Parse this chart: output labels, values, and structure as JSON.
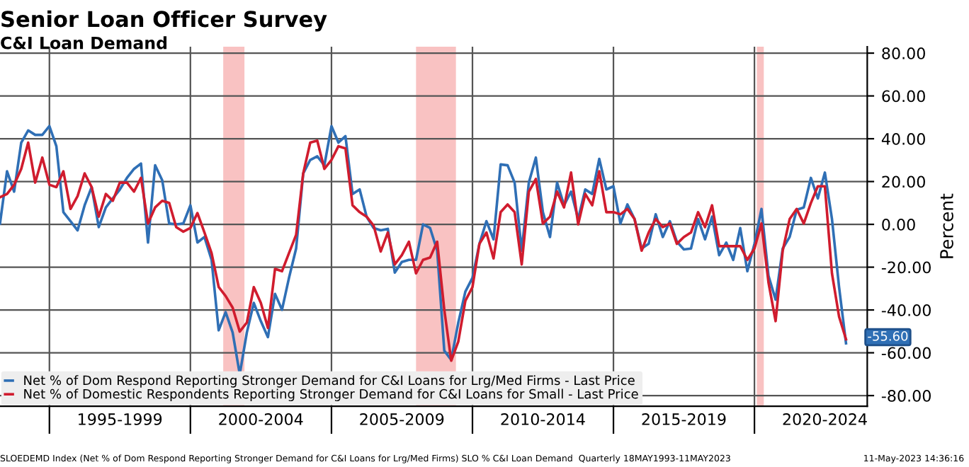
{
  "chart_data": {
    "type": "line",
    "title": "Senior Loan Officer Survey",
    "subtitle": "C&I Loan Demand",
    "ylabel": "Percent",
    "x": [
      "1993-04",
      "1993-07",
      "1993-10",
      "1994-01",
      "1994-04",
      "1994-07",
      "1994-10",
      "1995-01",
      "1995-04",
      "1995-07",
      "1995-10",
      "1996-01",
      "1996-04",
      "1996-07",
      "1996-10",
      "1997-01",
      "1997-04",
      "1997-07",
      "1997-10",
      "1998-01",
      "1998-04",
      "1998-07",
      "1998-10",
      "1999-01",
      "1999-04",
      "1999-07",
      "1999-10",
      "2000-01",
      "2000-04",
      "2000-07",
      "2000-10",
      "2001-01",
      "2001-04",
      "2001-07",
      "2001-10",
      "2002-01",
      "2002-04",
      "2002-07",
      "2002-10",
      "2003-01",
      "2003-04",
      "2003-07",
      "2003-10",
      "2004-01",
      "2004-04",
      "2004-07",
      "2004-10",
      "2005-01",
      "2005-04",
      "2005-07",
      "2005-10",
      "2006-01",
      "2006-04",
      "2006-07",
      "2006-10",
      "2007-01",
      "2007-04",
      "2007-07",
      "2007-10",
      "2008-01",
      "2008-04",
      "2008-07",
      "2008-10",
      "2009-01",
      "2009-04",
      "2009-07",
      "2009-10",
      "2010-01",
      "2010-04",
      "2010-07",
      "2010-10",
      "2011-01",
      "2011-04",
      "2011-07",
      "2011-10",
      "2012-01",
      "2012-04",
      "2012-07",
      "2012-10",
      "2013-01",
      "2013-04",
      "2013-07",
      "2013-10",
      "2014-01",
      "2014-04",
      "2014-07",
      "2014-10",
      "2015-01",
      "2015-04",
      "2015-07",
      "2015-10",
      "2016-01",
      "2016-04",
      "2016-07",
      "2016-10",
      "2017-01",
      "2017-04",
      "2017-07",
      "2017-10",
      "2018-01",
      "2018-04",
      "2018-07",
      "2018-10",
      "2019-01",
      "2019-04",
      "2019-07",
      "2019-10",
      "2020-01",
      "2020-04",
      "2020-07",
      "2020-10",
      "2021-01",
      "2021-04",
      "2021-07",
      "2021-10",
      "2022-01",
      "2022-04",
      "2022-07",
      "2022-10",
      "2023-01",
      "2023-04"
    ],
    "series": [
      {
        "name": "Net % of Dom Respond Reporting Stronger Demand for C&I Loans for Lrg/Med Firms - Last Price",
        "color": "#2f6fb5",
        "values": [
          0.4,
          24.8,
          15.3,
          38.2,
          43.9,
          41.8,
          41.8,
          45.9,
          36.5,
          5.7,
          1.5,
          -2.8,
          8.9,
          17.4,
          -1.3,
          7.9,
          12.1,
          16.3,
          21.7,
          25.9,
          28.4,
          -8.5,
          27.6,
          20.6,
          0.4,
          0,
          0.4,
          8.9,
          -8.5,
          -5.9,
          -16.6,
          -49.5,
          -41,
          -50.5,
          -70,
          -50.5,
          -36.7,
          -45.2,
          -52.7,
          -32.5,
          -39.9,
          -25,
          -11.3,
          23.8,
          30.1,
          31.8,
          27.6,
          45.9,
          38.2,
          41.2,
          14.2,
          16.3,
          3.6,
          -1.7,
          -2.8,
          -2.1,
          -22.5,
          -17.6,
          -16.6,
          -16.6,
          0,
          -1.7,
          -12.3,
          -59,
          -63.3,
          -46,
          -31.4,
          -25,
          -9.1,
          1.5,
          -7,
          28,
          27.6,
          19.5,
          -12.3,
          19.5,
          31.2,
          5.7,
          -5.9,
          19.5,
          8.9,
          15.3,
          2.5,
          16.3,
          14.2,
          30.6,
          16.3,
          17.8,
          0.4,
          9.3,
          2.5,
          -11.3,
          -9.1,
          4.7,
          -5.9,
          1.5,
          -8.1,
          -11.7,
          -11.3,
          2.5,
          -7,
          3.6,
          -14.4,
          -8.5,
          -16.6,
          -1.7,
          -21.9,
          -9.1,
          7.2,
          -24,
          -35.2,
          -11.3,
          -5.9,
          6.8,
          7.9,
          21.7,
          12.1,
          24.2,
          2.5,
          -29.3,
          -55.6
        ]
      },
      {
        "name": "Net % of Domestic Respondents Reporting Stronger Demand for C&I Loans for Small - Last Price",
        "color": "#d01c2e",
        "values": [
          12.7,
          14.2,
          18.5,
          25.9,
          38.2,
          19.5,
          31.2,
          18.5,
          17.4,
          24.8,
          7.2,
          13.2,
          23.8,
          17.4,
          3.6,
          14.2,
          11,
          19.5,
          19.5,
          15.3,
          21.7,
          0.4,
          7.9,
          11,
          10,
          -1.3,
          -3.4,
          -1.7,
          5.3,
          -3.8,
          -13.4,
          -29.3,
          -33.5,
          -38.9,
          -50.1,
          -45.9,
          -29.3,
          -36.7,
          -48.4,
          -20.8,
          -21.9,
          -13.4,
          -4.9,
          23.8,
          38.2,
          39.1,
          25.9,
          30.1,
          36.5,
          35.5,
          8.9,
          5.7,
          3.6,
          -0.6,
          -12.7,
          -3.8,
          -18.7,
          -14.4,
          -8.1,
          -22.9,
          -16.6,
          -15.5,
          -8.1,
          -39.9,
          -63.7,
          -54.8,
          -35.7,
          -29.3,
          -9.1,
          -3.8,
          -15.9,
          5.7,
          9.3,
          5.7,
          -18.7,
          15.3,
          21.2,
          0.4,
          3.6,
          15.3,
          7.9,
          24.2,
          0,
          14.2,
          8.9,
          24.8,
          5.7,
          5.7,
          4.7,
          7.2,
          2.5,
          -12.3,
          -3.8,
          2.5,
          -1.3,
          0.4,
          -9.1,
          -5.9,
          -3.8,
          5.7,
          -1.3,
          8.9,
          -10.2,
          -10.2,
          -10.2,
          -10.2,
          -16.6,
          -11.3,
          0.4,
          -27.2,
          -45.2,
          -12.3,
          2.5,
          7.2,
          0.4,
          10,
          17.8,
          17.8,
          -22.9,
          -43.1,
          -53.7
        ]
      }
    ],
    "xlim": [
      "1993-04",
      "2024-01"
    ],
    "xticks": [
      {
        "value": "1995-01",
        "label": null
      },
      {
        "value": "1997-07",
        "label": "1995-1999"
      },
      {
        "value": "2000-01",
        "label": null
      },
      {
        "value": "2002-07",
        "label": "2000-2004"
      },
      {
        "value": "2005-01",
        "label": null
      },
      {
        "value": "2007-07",
        "label": "2005-2009"
      },
      {
        "value": "2010-01",
        "label": null
      },
      {
        "value": "2012-07",
        "label": "2010-2014"
      },
      {
        "value": "2015-01",
        "label": null
      },
      {
        "value": "2017-07",
        "label": "2015-2019"
      },
      {
        "value": "2020-01",
        "label": null
      },
      {
        "value": "2022-07",
        "label": "2020-2024"
      }
    ],
    "ylim": [
      -85,
      83
    ],
    "yticks": [
      {
        "value": -80,
        "label": "-80.00"
      },
      {
        "value": -60,
        "label": "-60.00"
      },
      {
        "value": -40,
        "label": "-40.00"
      },
      {
        "value": -20,
        "label": "-20.00"
      },
      {
        "value": 0,
        "label": "0.00"
      },
      {
        "value": 20,
        "label": "20.00"
      },
      {
        "value": 40,
        "label": "40.00"
      },
      {
        "value": 60,
        "label": "60.00"
      },
      {
        "value": 80,
        "label": "80.00"
      }
    ],
    "bands": [
      {
        "axis": "x",
        "from": "2001-03",
        "to": "2001-12",
        "color": "#f7a8a8"
      },
      {
        "axis": "x",
        "from": "2008-01",
        "to": "2009-06",
        "color": "#f7a8a8"
      },
      {
        "axis": "x",
        "from": "2020-02",
        "to": "2020-05",
        "color": "#f7a8a8"
      }
    ],
    "annotations": [
      {
        "text": "-55.60",
        "x": "2023-04",
        "y": -55.6
      },
      "SLOEDEMD Index (Net % of Dom Respond Reporting Stronger Demand for C&I Loans for Lrg/Med Firms) SLO % C&I Loan Demand  Quarterly 18MAY1993-11MAY2023",
      "11-May-2023 14:36:16"
    ],
    "grid": true,
    "legend": "bottom left",
    "marker": "none",
    "line_style": "solid"
  }
}
